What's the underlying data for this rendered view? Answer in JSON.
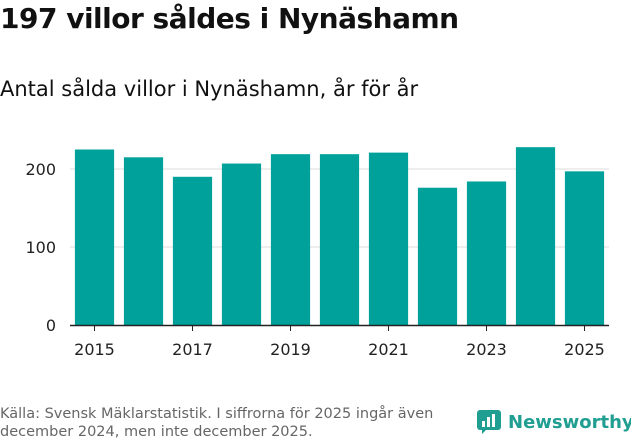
{
  "title": "197 villor såldes i Nynäshamn",
  "subtitle": "Antal sålda villor i Nynäshamn, år för år",
  "chart_data": {
    "type": "bar",
    "title": "Antal sålda villor i Nynäshamn, år för år",
    "xlabel": "",
    "ylabel": "",
    "categories": [
      "2015",
      "2016",
      "2017",
      "2018",
      "2019",
      "2020",
      "2021",
      "2022",
      "2023",
      "2024",
      "2025"
    ],
    "values": [
      225,
      215,
      190,
      207,
      219,
      219,
      221,
      176,
      184,
      228,
      197
    ],
    "x_tick_labels": [
      "2015",
      "2017",
      "2019",
      "2021",
      "2023",
      "2025"
    ],
    "y_ticks": [
      0,
      100,
      200
    ],
    "ylim": [
      0,
      250
    ],
    "grid": true,
    "bar_color": "#00a19a"
  },
  "footer": {
    "source": "Källa: Svensk Mäklarstatistik. I siffrorna för 2025 ingår även december 2024, men inte december 2025."
  },
  "brand": {
    "name": "Newsworthy",
    "logo_icon": "newsworthy-logo-icon",
    "color": "#1f9e91"
  }
}
